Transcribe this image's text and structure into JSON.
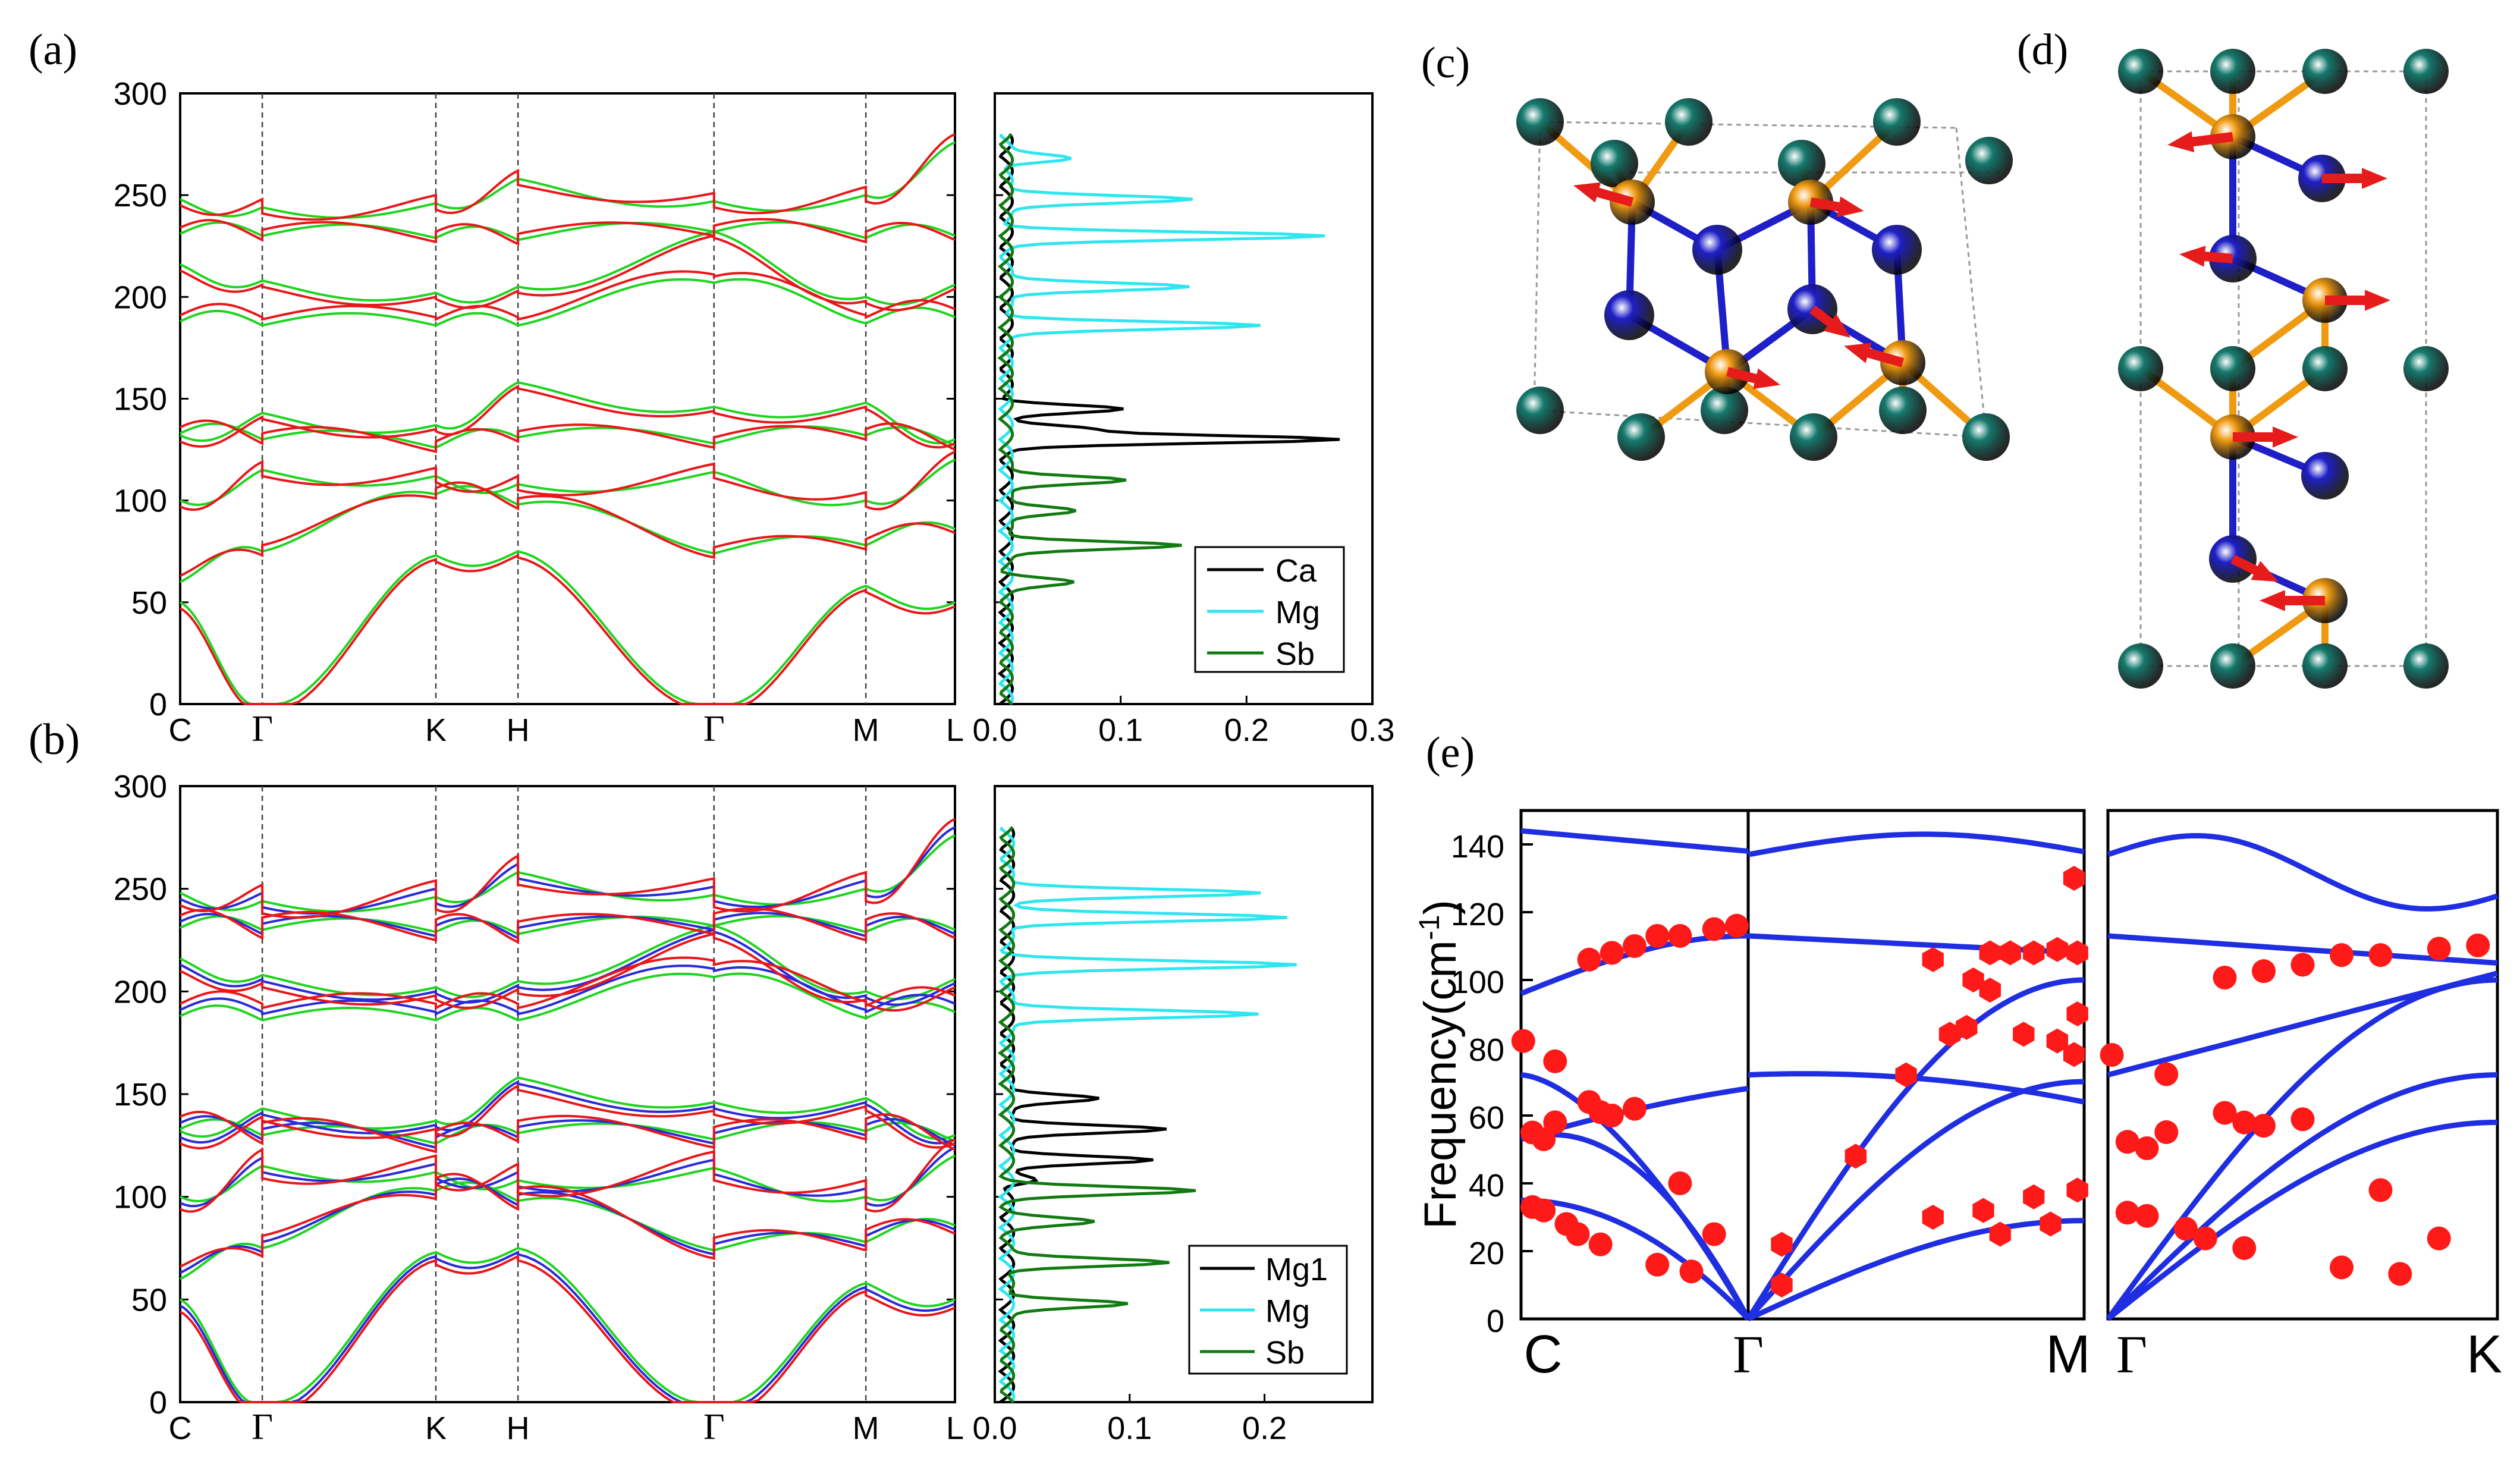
{
  "panel_labels": {
    "a": "(a)",
    "b": "(b)",
    "c": "(c)",
    "d": "(d)",
    "e": "(e)"
  },
  "colors": {
    "red": "#e8171b",
    "green": "#1fd41f",
    "blue": "#2a2ad8",
    "black": "#000000",
    "cyan": "#2ee6f0",
    "darkgreen": "#127a12",
    "teal": "#157a6e",
    "orange": "#f09a12",
    "atomBlue": "#1f1fc8",
    "arrow": "#e61c1c",
    "eMarker": "#ff1a1a",
    "eLine": "#1f2ee0"
  },
  "chart_data": [
    {
      "id": "a-bands",
      "type": "line",
      "title": "",
      "ylabel": "",
      "xlabel": "",
      "ylim": [
        0,
        300
      ],
      "yticks": [
        "0",
        "50",
        "100",
        "150",
        "200",
        "250",
        "300"
      ],
      "xlabels": [
        "C",
        "Γ",
        "K",
        "H",
        "Γ",
        "M",
        "L"
      ],
      "xpos": [
        0,
        0.106,
        0.33,
        0.436,
        0.689,
        0.885,
        1
      ],
      "series": [
        {
          "name": "bands (red)"
        },
        {
          "name": "bands (green)"
        }
      ]
    },
    {
      "id": "a-dos",
      "type": "line",
      "xlim": [
        0,
        0.3
      ],
      "xticks": [
        "0.0",
        "0.1",
        "0.2",
        "0.3"
      ],
      "series": [
        {
          "name": "Ca",
          "peaks": [
            [
              130,
              0.26
            ],
            [
              145,
              0.09
            ],
            [
              135,
              0.07
            ]
          ]
        },
        {
          "name": "Mg",
          "peaks": [
            [
              230,
              0.25
            ],
            [
              248,
              0.15
            ],
            [
              205,
              0.15
            ],
            [
              186,
              0.2
            ],
            [
              268,
              0.05
            ]
          ]
        },
        {
          "name": "Sb",
          "peaks": [
            [
              78,
              0.14
            ],
            [
              110,
              0.1
            ],
            [
              95,
              0.06
            ],
            [
              60,
              0.05
            ]
          ]
        }
      ],
      "legend": [
        "Ca",
        "Mg",
        "Sb"
      ]
    },
    {
      "id": "b-bands",
      "type": "line",
      "ylim": [
        0,
        300
      ],
      "yticks": [
        "0",
        "50",
        "100",
        "150",
        "200",
        "250",
        "300"
      ],
      "xlabels": [
        "C",
        "Γ",
        "K",
        "H",
        "Γ",
        "M",
        "L"
      ],
      "xpos": [
        0,
        0.106,
        0.33,
        0.436,
        0.689,
        0.885,
        1
      ],
      "series": [
        {
          "name": "bands (red)"
        },
        {
          "name": "bands (blue)"
        },
        {
          "name": "bands (green)"
        }
      ]
    },
    {
      "id": "b-dos",
      "type": "line",
      "xlim": [
        0,
        0.28
      ],
      "xticks": [
        "0.0",
        "0.1",
        "0.2"
      ],
      "series": [
        {
          "name": "Mg1",
          "peaks": [
            [
              133,
              0.12
            ],
            [
              118,
              0.11
            ],
            [
              148,
              0.07
            ],
            [
              108,
              0.02
            ]
          ]
        },
        {
          "name": "Mg",
          "peaks": [
            [
              236,
              0.21
            ],
            [
              213,
              0.21
            ],
            [
              248,
              0.19
            ],
            [
              189,
              0.19
            ]
          ]
        },
        {
          "name": "Sb",
          "peaks": [
            [
              103,
              0.135
            ],
            [
              68,
              0.12
            ],
            [
              48,
              0.09
            ],
            [
              88,
              0.06
            ]
          ]
        }
      ],
      "legend": [
        "Mg1",
        "Mg",
        "Sb"
      ]
    },
    {
      "id": "e-dispersion",
      "type": "scatter",
      "ylabel": "Frequency(cm",
      "ylabel_sup": "-1",
      "ylabel_close": ")",
      "ylim": [
        0,
        150
      ],
      "yticks": [
        "0",
        "20",
        "40",
        "60",
        "80",
        "100",
        "120",
        "140"
      ],
      "xlabels": [
        "C",
        "Γ",
        "M",
        "Γ",
        "K"
      ],
      "points_left": [
        [
          0.05,
          33
        ],
        [
          0.1,
          32
        ],
        [
          0.2,
          28
        ],
        [
          0.25,
          25
        ],
        [
          0.35,
          22
        ],
        [
          0.6,
          16
        ],
        [
          0.75,
          14
        ],
        [
          0.85,
          25
        ],
        [
          0.05,
          55
        ],
        [
          0.1,
          53
        ],
        [
          0.15,
          58
        ],
        [
          0.3,
          64
        ],
        [
          0.35,
          61
        ],
        [
          0.4,
          60
        ],
        [
          0.5,
          62
        ],
        [
          0.7,
          40
        ],
        [
          0.15,
          76
        ],
        [
          0.01,
          82
        ],
        [
          0.3,
          106
        ],
        [
          0.4,
          108
        ],
        [
          0.5,
          110
        ],
        [
          0.6,
          113
        ],
        [
          0.7,
          113
        ],
        [
          0.85,
          115
        ],
        [
          0.95,
          116
        ]
      ],
      "points_mid": [
        [
          0.1,
          10
        ],
        [
          0.1,
          22
        ],
        [
          0.32,
          48
        ],
        [
          0.47,
          72
        ],
        [
          0.55,
          106
        ],
        [
          0.55,
          30
        ],
        [
          0.7,
          32
        ],
        [
          0.75,
          25
        ],
        [
          0.85,
          36
        ],
        [
          0.9,
          28
        ],
        [
          0.98,
          38
        ],
        [
          0.6,
          84
        ],
        [
          0.65,
          86
        ],
        [
          0.72,
          97
        ],
        [
          0.82,
          84
        ],
        [
          0.92,
          82
        ],
        [
          0.97,
          78
        ],
        [
          0.98,
          90
        ],
        [
          0.67,
          100
        ],
        [
          0.72,
          108
        ],
        [
          0.78,
          108
        ],
        [
          0.85,
          108
        ],
        [
          0.92,
          109
        ],
        [
          0.98,
          108
        ],
        [
          0.97,
          130
        ]
      ]
    }
  ],
  "legend_a": {
    "ca": "Ca",
    "mg": "Mg",
    "sb": "Sb"
  },
  "legend_b": {
    "mg1": "Mg1",
    "mg": "Mg",
    "sb": "Sb"
  }
}
